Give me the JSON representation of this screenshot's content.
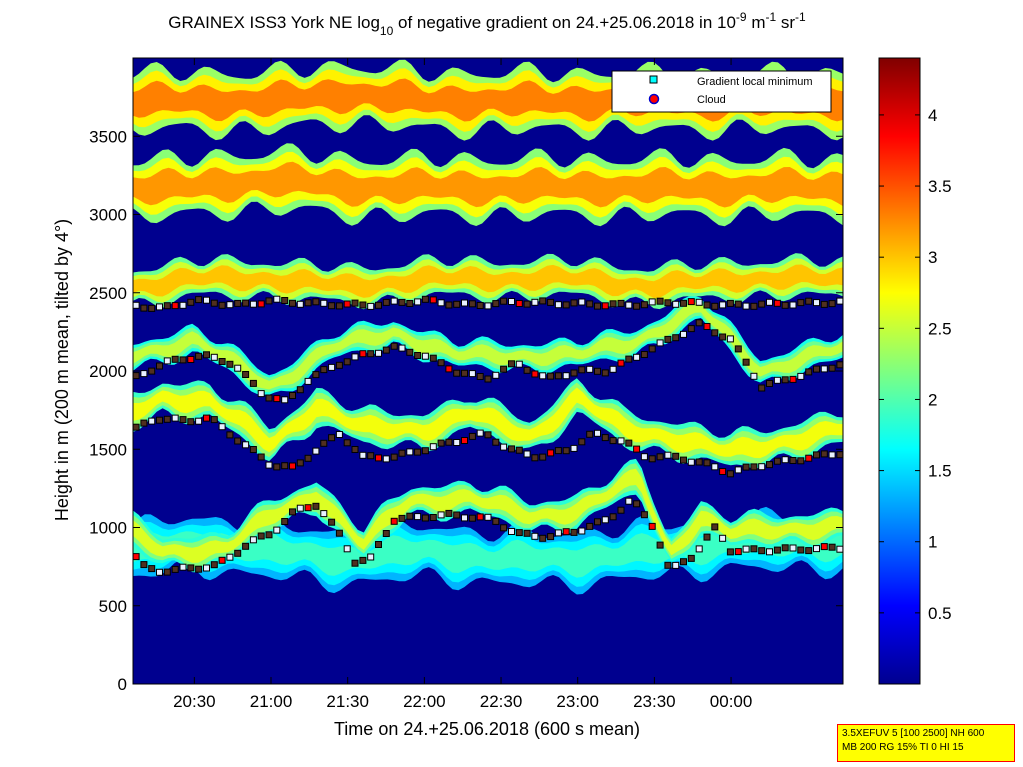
{
  "chart_data": {
    "type": "heatmap",
    "title": {
      "prefix": "GRAINEX ISS3 York NE log",
      "log_sub": "10",
      "middle": " of negative gradient on 24.+25.06.2018 in 10",
      "exp1": "-9",
      "unit_m": " m",
      "exp2": "-1",
      "unit_sr": " sr",
      "exp3": "-1"
    },
    "xlabel": "Time on 24.+25.06.2018 (600 s mean)",
    "ylabel": "Height in m (200 m mean, tilted by 4°)",
    "x_range_hours": [
      20.1,
      24.73
    ],
    "x_ticks": [
      {
        "t": 20.5,
        "label": "20:30"
      },
      {
        "t": 21.0,
        "label": "21:00"
      },
      {
        "t": 21.5,
        "label": "21:30"
      },
      {
        "t": 22.0,
        "label": "22:00"
      },
      {
        "t": 22.5,
        "label": "22:30"
      },
      {
        "t": 23.0,
        "label": "23:00"
      },
      {
        "t": 23.5,
        "label": "23:30"
      },
      {
        "t": 24.0,
        "label": "00:00"
      }
    ],
    "ylim": [
      0,
      4000
    ],
    "y_ticks": [
      {
        "v": 0,
        "label": "0"
      },
      {
        "v": 500,
        "label": "500"
      },
      {
        "v": 1000,
        "label": "1000"
      },
      {
        "v": 1500,
        "label": "1500"
      },
      {
        "v": 2000,
        "label": "2000"
      },
      {
        "v": 2500,
        "label": "2500"
      },
      {
        "v": 3000,
        "label": "3000"
      },
      {
        "v": 3500,
        "label": "3500"
      }
    ],
    "colorbar": {
      "colormap": "jet",
      "range": [
        0,
        4.4
      ],
      "ticks": [
        {
          "v": 0.5,
          "label": "0.5"
        },
        {
          "v": 1,
          "label": "1"
        },
        {
          "v": 1.5,
          "label": "1.5"
        },
        {
          "v": 2,
          "label": "2"
        },
        {
          "v": 2.5,
          "label": "2.5"
        },
        {
          "v": 3,
          "label": "3"
        },
        {
          "v": 3.5,
          "label": "3.5"
        },
        {
          "v": 4,
          "label": "4"
        }
      ]
    },
    "legend": {
      "placement": "top-right",
      "entries": [
        {
          "label": "Gradient local minimum",
          "color": "#00ffff",
          "marker": "square"
        },
        {
          "label": "Cloud",
          "color": "#ff0000",
          "marker": "circle"
        }
      ]
    },
    "layers": [
      {
        "name": "low-band",
        "base": [
          [
            20.1,
            650
          ],
          [
            20.5,
            700
          ],
          [
            21.0,
            650
          ],
          [
            21.5,
            600
          ],
          [
            22.0,
            650
          ],
          [
            22.5,
            600
          ],
          [
            23.0,
            600
          ],
          [
            23.5,
            650
          ],
          [
            24.0,
            700
          ],
          [
            24.73,
            700
          ]
        ],
        "thickness": 400,
        "level": 1.9
      },
      {
        "name": "layer-1",
        "base": [
          [
            20.1,
            850
          ],
          [
            20.3,
            720
          ],
          [
            20.7,
            760
          ],
          [
            21.0,
            950
          ],
          [
            21.3,
            1100
          ],
          [
            21.6,
            780
          ],
          [
            21.9,
            1050
          ],
          [
            22.3,
            1080
          ],
          [
            22.7,
            950
          ],
          [
            23.0,
            1000
          ],
          [
            23.4,
            1200
          ],
          [
            23.6,
            720
          ],
          [
            23.8,
            950
          ],
          [
            24.0,
            850
          ],
          [
            24.73,
            900
          ]
        ],
        "thickness": 230,
        "level": 2.6
      },
      {
        "name": "layer-2",
        "base": [
          [
            20.1,
            1600
          ],
          [
            20.3,
            1700
          ],
          [
            20.6,
            1680
          ],
          [
            21.0,
            1400
          ],
          [
            21.3,
            1650
          ],
          [
            21.6,
            1500
          ],
          [
            22.0,
            1500
          ],
          [
            22.3,
            1600
          ],
          [
            22.7,
            1450
          ],
          [
            23.0,
            1700
          ],
          [
            23.3,
            1500
          ],
          [
            23.6,
            1450
          ],
          [
            24.0,
            1350
          ],
          [
            24.73,
            1500
          ]
        ],
        "thickness": 260,
        "level": 2.7
      },
      {
        "name": "layer-3",
        "base": [
          [
            20.1,
            2000
          ],
          [
            20.5,
            2100
          ],
          [
            21.0,
            1800
          ],
          [
            21.4,
            2050
          ],
          [
            21.8,
            2150
          ],
          [
            22.2,
            2000
          ],
          [
            22.6,
            2000
          ],
          [
            23.0,
            2000
          ],
          [
            23.4,
            2100
          ],
          [
            23.8,
            2300
          ],
          [
            24.2,
            1900
          ],
          [
            24.73,
            2050
          ]
        ],
        "thickness": 200,
        "level": 2.5
      },
      {
        "name": "layer-4",
        "base": [
          [
            20.1,
            2400
          ],
          [
            20.5,
            2450
          ],
          [
            21.0,
            2450
          ],
          [
            21.5,
            2400
          ],
          [
            22.0,
            2450
          ],
          [
            22.5,
            2450
          ],
          [
            23.0,
            2450
          ],
          [
            23.5,
            2400
          ],
          [
            24.0,
            2450
          ],
          [
            24.73,
            2450
          ]
        ],
        "thickness": 280,
        "level": 3.0
      },
      {
        "name": "layer-5",
        "base": [
          [
            20.1,
            2950
          ],
          [
            20.5,
            2950
          ],
          [
            21.0,
            3000
          ],
          [
            21.5,
            2950
          ],
          [
            22.0,
            2950
          ],
          [
            22.5,
            2950
          ],
          [
            23.0,
            2950
          ],
          [
            23.5,
            2950
          ],
          [
            24.0,
            2950
          ],
          [
            24.73,
            2950
          ]
        ],
        "thickness": 450,
        "level": 3.2
      },
      {
        "name": "layer-6",
        "base": [
          [
            20.1,
            3500
          ],
          [
            20.5,
            3500
          ],
          [
            21.0,
            3500
          ],
          [
            21.5,
            3550
          ],
          [
            22.0,
            3500
          ],
          [
            22.5,
            3500
          ],
          [
            23.0,
            3500
          ],
          [
            23.5,
            3500
          ],
          [
            24.0,
            3500
          ],
          [
            24.73,
            3500
          ]
        ],
        "thickness": 450,
        "level": 3.3
      }
    ],
    "minimum_lines": [
      {
        "points": [
          [
            20.1,
            850
          ],
          [
            20.15,
            760
          ],
          [
            20.25,
            720
          ],
          [
            20.5,
            740
          ],
          [
            20.65,
            760
          ],
          [
            20.75,
            820
          ],
          [
            20.85,
            900
          ],
          [
            21.0,
            960
          ],
          [
            21.15,
            1100
          ],
          [
            21.3,
            1150
          ],
          [
            21.45,
            950
          ],
          [
            21.55,
            780
          ],
          [
            21.65,
            800
          ],
          [
            21.8,
            1050
          ],
          [
            22.0,
            1070
          ],
          [
            22.2,
            1080
          ],
          [
            22.45,
            1050
          ],
          [
            22.6,
            960
          ],
          [
            22.8,
            940
          ],
          [
            23.0,
            980
          ],
          [
            23.2,
            1050
          ],
          [
            23.35,
            1180
          ],
          [
            23.5,
            1000
          ],
          [
            23.6,
            720
          ],
          [
            23.75,
            820
          ],
          [
            23.9,
            1000
          ],
          [
            24.0,
            850
          ],
          [
            24.73,
            870
          ]
        ]
      },
      {
        "points": [
          [
            20.1,
            1620
          ],
          [
            20.25,
            1700
          ],
          [
            20.45,
            1680
          ],
          [
            20.6,
            1700
          ],
          [
            20.8,
            1550
          ],
          [
            21.0,
            1400
          ],
          [
            21.15,
            1380
          ],
          [
            21.3,
            1500
          ],
          [
            21.45,
            1600
          ],
          [
            21.6,
            1450
          ],
          [
            21.8,
            1450
          ],
          [
            22.0,
            1500
          ],
          [
            22.2,
            1550
          ],
          [
            22.4,
            1600
          ],
          [
            22.55,
            1500
          ],
          [
            22.75,
            1450
          ],
          [
            22.95,
            1500
          ],
          [
            23.1,
            1600
          ],
          [
            23.3,
            1550
          ],
          [
            23.45,
            1450
          ],
          [
            23.65,
            1450
          ],
          [
            23.85,
            1400
          ],
          [
            24.0,
            1350
          ],
          [
            24.2,
            1400
          ],
          [
            24.73,
            1480
          ]
        ]
      },
      {
        "points": [
          [
            20.1,
            1950
          ],
          [
            20.3,
            2050
          ],
          [
            20.55,
            2100
          ],
          [
            20.75,
            2050
          ],
          [
            20.95,
            1850
          ],
          [
            21.1,
            1800
          ],
          [
            21.25,
            1950
          ],
          [
            21.45,
            2050
          ],
          [
            21.6,
            2100
          ],
          [
            21.8,
            2150
          ],
          [
            22.0,
            2100
          ],
          [
            22.2,
            2000
          ],
          [
            22.4,
            1950
          ],
          [
            22.6,
            2050
          ],
          [
            22.8,
            1950
          ],
          [
            23.0,
            2000
          ],
          [
            23.2,
            2000
          ],
          [
            23.4,
            2100
          ],
          [
            23.6,
            2200
          ],
          [
            23.8,
            2300
          ],
          [
            24.0,
            2200
          ],
          [
            24.2,
            1900
          ],
          [
            24.73,
            2050
          ]
        ]
      },
      {
        "points": [
          [
            20.1,
            2420
          ],
          [
            20.3,
            2400
          ],
          [
            20.5,
            2450
          ],
          [
            20.8,
            2420
          ],
          [
            21.0,
            2450
          ],
          [
            21.3,
            2430
          ],
          [
            21.6,
            2420
          ],
          [
            22.0,
            2450
          ],
          [
            22.3,
            2420
          ],
          [
            22.6,
            2440
          ],
          [
            23.0,
            2430
          ],
          [
            23.3,
            2420
          ],
          [
            23.6,
            2440
          ],
          [
            24.0,
            2420
          ],
          [
            24.73,
            2440
          ]
        ]
      }
    ]
  }
}
